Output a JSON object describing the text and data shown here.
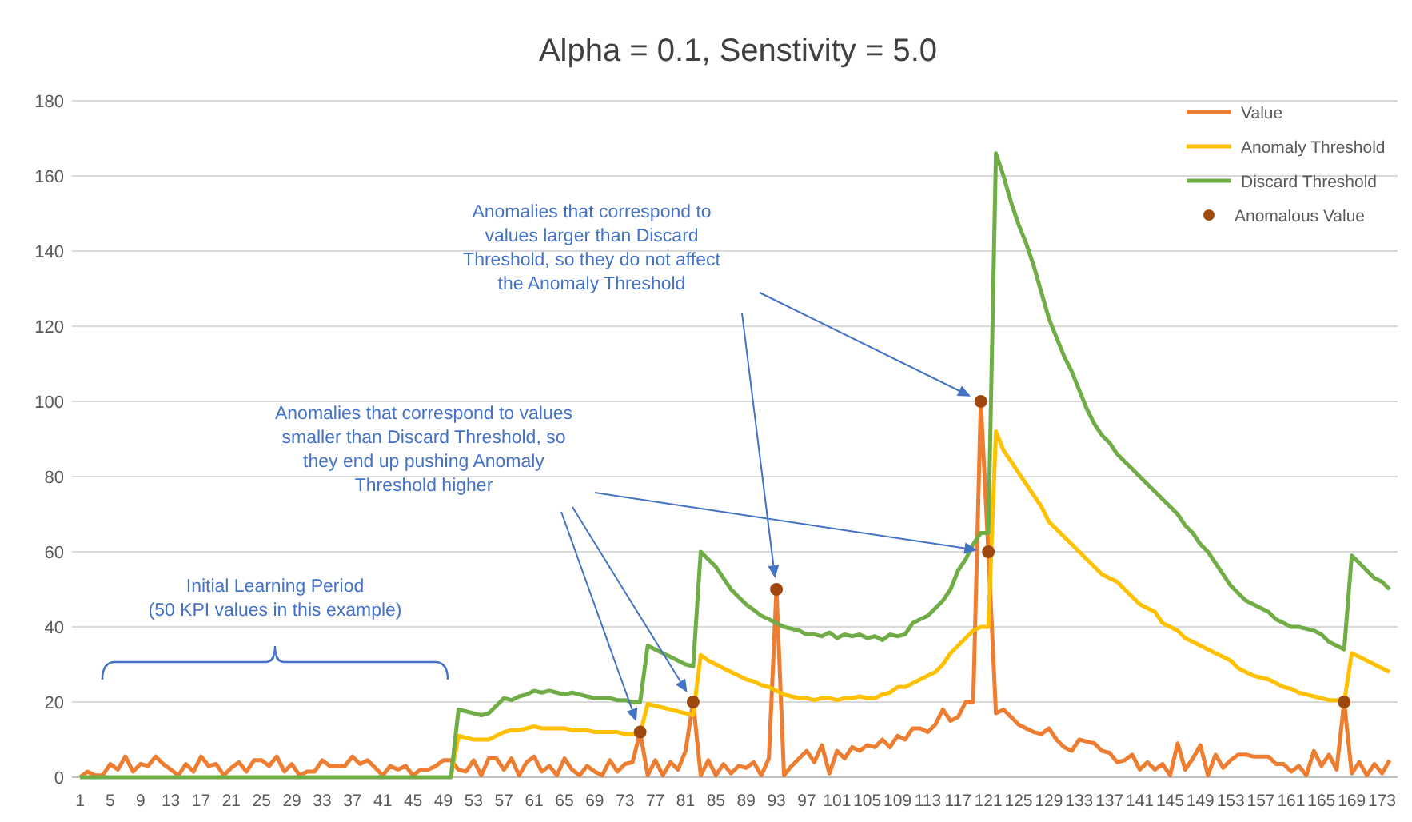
{
  "chart_data": {
    "type": "line",
    "title": "Alpha = 0.1, Senstivity = 5.0",
    "categories": [
      "1",
      null,
      null,
      null,
      "5",
      null,
      null,
      null,
      "9",
      null,
      null,
      null,
      "13",
      null,
      null,
      null,
      "17",
      null,
      null,
      null,
      "21",
      null,
      null,
      null,
      "25",
      null,
      null,
      null,
      "29",
      null,
      null,
      null,
      "33",
      null,
      null,
      null,
      "37",
      null,
      null,
      null,
      "41",
      null,
      null,
      null,
      "45",
      null,
      null,
      null,
      "49",
      null,
      null,
      null,
      "53",
      null,
      null,
      null,
      "57",
      null,
      null,
      null,
      "61",
      null,
      null,
      null,
      "65",
      null,
      null,
      null,
      "69",
      null,
      null,
      null,
      "73",
      null,
      null,
      null,
      "77",
      null,
      null,
      null,
      "81",
      null,
      null,
      null,
      "85",
      null,
      null,
      null,
      "89",
      null,
      null,
      null,
      "93",
      null,
      null,
      null,
      "97",
      null,
      null,
      null,
      "101",
      null,
      null,
      null,
      "105",
      null,
      null,
      null,
      "109",
      null,
      null,
      null,
      "113",
      null,
      null,
      null,
      "117",
      null,
      null,
      null,
      "121",
      null,
      null,
      null,
      "125",
      null,
      null,
      null,
      "129",
      null,
      null,
      null,
      "133",
      null,
      null,
      null,
      "137",
      null,
      null,
      null,
      "141",
      null,
      null,
      null,
      "145",
      null,
      null,
      null,
      "149",
      null,
      null,
      null,
      "153",
      null,
      null,
      null,
      "157",
      null,
      null,
      null,
      "161",
      null,
      null,
      null,
      "165",
      null,
      null,
      null,
      "169",
      null,
      null,
      null,
      "173",
      null
    ],
    "series": [
      {
        "name": "Value",
        "color": "#ed7d31",
        "values": [
          0,
          1.5,
          0.5,
          0.5,
          3.5,
          2,
          5.5,
          1.5,
          3.5,
          3,
          5.5,
          3.5,
          2,
          0.5,
          3.5,
          1.5,
          5.5,
          3,
          3.5,
          0.5,
          2.5,
          4,
          1.5,
          4.5,
          4.5,
          3,
          5.5,
          1.5,
          3.5,
          0.5,
          1.5,
          1.5,
          4.5,
          3,
          3,
          3,
          5.5,
          3.5,
          4.5,
          2.5,
          0.5,
          3,
          2,
          3,
          0.5,
          2,
          2,
          3,
          4.5,
          4.5,
          2,
          1.5,
          4.5,
          0.5,
          5,
          5,
          2,
          5,
          0.5,
          4,
          5.5,
          1.5,
          3,
          0.5,
          5,
          2,
          0.5,
          3,
          1.5,
          0.5,
          4.5,
          1.5,
          3.5,
          4,
          12,
          0.5,
          4.5,
          0.5,
          4,
          2,
          7,
          20,
          0.5,
          4.5,
          0.5,
          3.5,
          1,
          3,
          2.5,
          4,
          0.5,
          5,
          50,
          0.5,
          3,
          5,
          7,
          4,
          8.5,
          1,
          7,
          5,
          8,
          7,
          8.5,
          8,
          10,
          8,
          11,
          10,
          13,
          13,
          12,
          14,
          18,
          15,
          16,
          20,
          20,
          100,
          60,
          17,
          18,
          16,
          14,
          13,
          12,
          11.5,
          13,
          10,
          8,
          7,
          10,
          9.5,
          9,
          7,
          6.5,
          4,
          4.5,
          6,
          2,
          4,
          2,
          3.5,
          0.5,
          9,
          2,
          5,
          8.5,
          0.5,
          6,
          2.5,
          4.5,
          6,
          6,
          5.5,
          5.5,
          5.5,
          3.5,
          3.5,
          1.5,
          3,
          0.5,
          7,
          3,
          6,
          2,
          20,
          1,
          4,
          0.5,
          3.5,
          1,
          4.5
        ]
      },
      {
        "name": "Anomaly Threshold",
        "color": "#ffc000",
        "values": [
          null,
          null,
          null,
          null,
          null,
          null,
          null,
          null,
          null,
          null,
          null,
          null,
          null,
          null,
          null,
          null,
          null,
          null,
          null,
          null,
          null,
          null,
          null,
          null,
          null,
          null,
          null,
          null,
          null,
          null,
          null,
          null,
          null,
          null,
          null,
          null,
          null,
          null,
          null,
          null,
          null,
          null,
          null,
          null,
          null,
          null,
          null,
          null,
          null,
          0,
          11,
          10.5,
          10,
          10,
          10,
          11,
          12,
          12.5,
          12.5,
          13,
          13.5,
          13,
          13,
          13,
          13,
          12.5,
          12.5,
          12.5,
          12,
          12,
          12,
          12,
          11.5,
          11.5,
          11.5,
          19.5,
          19,
          18.5,
          18,
          17.5,
          17,
          16.5,
          32.5,
          31,
          30,
          29,
          28,
          27,
          26,
          25.5,
          24.5,
          24,
          23,
          22,
          21.5,
          21,
          21,
          20.5,
          21,
          21,
          20.5,
          21,
          21,
          21.5,
          21,
          21,
          22,
          22.5,
          24,
          24,
          25,
          26,
          27,
          28,
          30,
          33,
          35,
          37,
          39,
          40,
          40,
          92,
          87,
          84,
          81,
          78,
          75,
          72,
          68,
          66,
          64,
          62,
          60,
          58,
          56,
          54,
          53,
          52,
          50,
          48,
          46,
          45,
          44,
          41,
          40,
          39,
          37,
          36,
          35,
          34,
          33,
          32,
          31,
          29,
          28,
          27,
          26.5,
          26,
          25,
          24,
          23.5,
          22.5,
          22,
          21.5,
          21,
          20.5,
          20.5,
          20,
          33,
          32,
          31,
          30,
          29,
          28
        ]
      },
      {
        "name": "Discard Threshold",
        "color": "#70ad47",
        "values": [
          0,
          0,
          0,
          0,
          0,
          0,
          0,
          0,
          0,
          0,
          0,
          0,
          0,
          0,
          0,
          0,
          0,
          0,
          0,
          0,
          0,
          0,
          0,
          0,
          0,
          0,
          0,
          0,
          0,
          0,
          0,
          0,
          0,
          0,
          0,
          0,
          0,
          0,
          0,
          0,
          0,
          0,
          0,
          0,
          0,
          0,
          0,
          0,
          0,
          0,
          18,
          17.5,
          17,
          16.5,
          17,
          19,
          21,
          20.5,
          21.5,
          22,
          23,
          22.5,
          23,
          22.5,
          22,
          22.5,
          22,
          21.5,
          21,
          21,
          21,
          20.5,
          20.5,
          20,
          20,
          35,
          34,
          33,
          32,
          31,
          30,
          29.5,
          60,
          58,
          56,
          53,
          50,
          48,
          46,
          44.5,
          43,
          42,
          41,
          40,
          39.5,
          39,
          38,
          38,
          37.5,
          38.5,
          37,
          38,
          37.5,
          38,
          37,
          37.5,
          36.5,
          38,
          37.5,
          38,
          41,
          42,
          43,
          45,
          47,
          50,
          55,
          58,
          62,
          65,
          65,
          166,
          160,
          153,
          147,
          142,
          136,
          129,
          122,
          117,
          112,
          108,
          103,
          98,
          94,
          91,
          89,
          86,
          84,
          82,
          80,
          78,
          76,
          74,
          72,
          70,
          67,
          65,
          62,
          60,
          57,
          54,
          51,
          49,
          47,
          46,
          45,
          44,
          42,
          41,
          40,
          40,
          39.5,
          39,
          38,
          36,
          35,
          34,
          59,
          57,
          55,
          53,
          52,
          50
        ]
      },
      {
        "name": "Anomalous Value",
        "color": "#9e480e",
        "type": "scatter",
        "marker": "circle",
        "values": [
          null,
          null,
          null,
          null,
          null,
          null,
          null,
          null,
          null,
          null,
          null,
          null,
          null,
          null,
          null,
          null,
          null,
          null,
          null,
          null,
          null,
          null,
          null,
          null,
          null,
          null,
          null,
          null,
          null,
          null,
          null,
          null,
          null,
          null,
          null,
          null,
          null,
          null,
          null,
          null,
          null,
          null,
          null,
          null,
          null,
          null,
          null,
          null,
          null,
          null,
          null,
          null,
          null,
          null,
          null,
          null,
          null,
          null,
          null,
          null,
          null,
          null,
          null,
          null,
          null,
          null,
          null,
          null,
          null,
          null,
          null,
          null,
          null,
          null,
          12,
          null,
          null,
          null,
          null,
          null,
          null,
          20,
          null,
          null,
          null,
          null,
          null,
          null,
          null,
          null,
          null,
          null,
          50,
          null,
          null,
          null,
          null,
          null,
          null,
          null,
          null,
          null,
          null,
          null,
          null,
          null,
          null,
          null,
          null,
          null,
          null,
          null,
          null,
          null,
          null,
          null,
          null,
          null,
          null,
          100,
          60,
          null,
          null,
          null,
          null,
          null,
          null,
          null,
          null,
          null,
          null,
          null,
          null,
          null,
          null,
          null,
          null,
          null,
          null,
          null,
          null,
          null,
          null,
          null,
          null,
          null,
          null,
          null,
          null,
          null,
          null,
          null,
          null,
          null,
          null,
          null,
          null,
          null,
          null,
          null,
          null,
          null,
          null,
          null,
          null,
          null,
          null,
          20,
          null,
          null,
          null,
          null,
          null,
          null
        ]
      }
    ],
    "ylim": [
      0,
      180
    ],
    "yticks": [
      0,
      20,
      40,
      60,
      80,
      100,
      120,
      140,
      160,
      180
    ],
    "grid": "y",
    "legend": "top right",
    "marker": "none",
    "annotations": [
      "Anomalies that correspond to values larger than Discard Threshold, so they do not affect the Anomaly Threshold",
      "Anomalies that correspond to values smaller than Discard Threshold, so they end up pushing Anomaly Threshold higher",
      "Initial Learning Period (50 KPI values in this example)"
    ]
  }
}
